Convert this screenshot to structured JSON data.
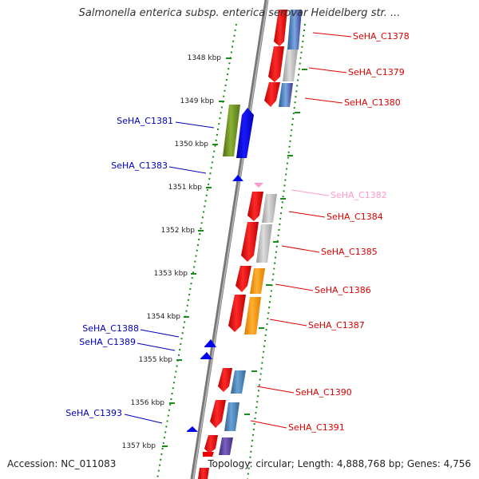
{
  "title": "Salmonella enterica subsp. enterica serovar Heidelberg str. ...",
  "accession": "Accession: NC_011083",
  "topology": "Topology: circular; Length: 4,888,768 bp; Genes: 4,756",
  "colors": {
    "backbone": "#888888",
    "ticks": "#1a8a1a",
    "forward_label": "#0000bb",
    "reverse_label": "#dd0000",
    "faded_label": "#ff99cc",
    "gene_red": "#ff0000",
    "gene_blue": "#0000ff",
    "gene_olive": "#6b8e23",
    "gene_gray": "#bbbbbb",
    "gene_orange": "#ff9900",
    "gene_steel": "#4682b4",
    "gene_purple": "#5a3f9e"
  },
  "scale_labels": [
    "1348 kbp",
    "1349 kbp",
    "1350 kbp",
    "1351 kbp",
    "1352 kbp",
    "1353 kbp",
    "1354 kbp",
    "1355 kbp",
    "1356 kbp",
    "1357 kbp"
  ],
  "forward_genes": [
    {
      "label": "SeHA_C1381",
      "icon": "olive-blue-forward-arrow"
    },
    {
      "label": "SeHA_C1383",
      "icon": "small-blue-arrow"
    },
    {
      "label": "SeHA_C1388",
      "icon": "small-blue-arrow"
    },
    {
      "label": "SeHA_C1389",
      "icon": "small-blue-arrow"
    },
    {
      "label": "SeHA_C1393",
      "icon": "small-blue-arrow"
    }
  ],
  "reverse_genes": [
    {
      "label": "SeHA_C1378"
    },
    {
      "label": "SeHA_C1379"
    },
    {
      "label": "SeHA_C1380"
    },
    {
      "label": "SeHA_C1382",
      "faded": true
    },
    {
      "label": "SeHA_C1384"
    },
    {
      "label": "SeHA_C1385"
    },
    {
      "label": "SeHA_C1386"
    },
    {
      "label": "SeHA_C1387"
    },
    {
      "label": "SeHA_C1390"
    },
    {
      "label": "SeHA_C1391"
    }
  ]
}
